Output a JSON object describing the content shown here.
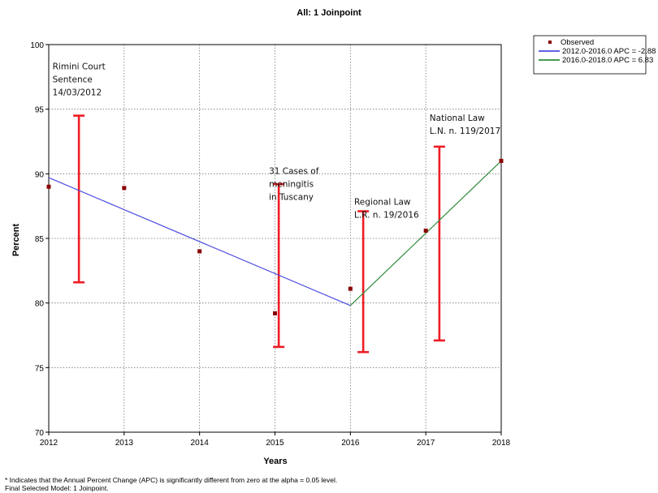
{
  "chart_data": {
    "type": "line",
    "title": "All: 1 Joinpoint",
    "xlabel": "Years",
    "ylabel": "Percent",
    "xlim": [
      2012,
      2018
    ],
    "ylim": [
      70,
      100
    ],
    "x_ticks": [
      "2012",
      "2013",
      "2014",
      "2015",
      "2016",
      "2017",
      "2018"
    ],
    "y_ticks": [
      "70",
      "75",
      "80",
      "85",
      "90",
      "95",
      "100"
    ],
    "grid": true,
    "legend_position": "top-right",
    "observed": {
      "name": "Observed",
      "color": "#8b0000",
      "points": [
        {
          "x": 2012,
          "y": 89.0
        },
        {
          "x": 2013,
          "y": 88.9
        },
        {
          "x": 2014,
          "y": 84.0
        },
        {
          "x": 2015,
          "y": 79.2
        },
        {
          "x": 2016,
          "y": 81.1
        },
        {
          "x": 2017,
          "y": 85.6
        },
        {
          "x": 2018,
          "y": 91.0
        }
      ]
    },
    "segments": [
      {
        "name": "2012.0-2016.0 APC  = -2.88",
        "color": "#4c4ce0",
        "x": [
          2012,
          2016
        ],
        "y": [
          89.7,
          79.8
        ]
      },
      {
        "name": "2016.0-2018.0 APC  = 6.83",
        "color": "#2e8b3a",
        "x": [
          2016,
          2018
        ],
        "y": [
          79.8,
          91.0
        ]
      }
    ],
    "error_bars": [
      {
        "x": 2012.4,
        "low": 81.6,
        "high": 94.5,
        "color": "#ee1c24"
      },
      {
        "x": 2015.05,
        "low": 76.6,
        "high": 89.2,
        "color": "#ee1c24"
      },
      {
        "x": 2016.17,
        "low": 76.2,
        "high": 87.1,
        "color": "#ee1c24"
      },
      {
        "x": 2017.18,
        "low": 77.1,
        "high": 92.1,
        "color": "#ee1c24"
      }
    ],
    "annotations": [
      {
        "x": 2012.05,
        "y": 98.1,
        "lines": [
          "Rimini Court",
          "Sentence",
          "14/03/2012"
        ]
      },
      {
        "x": 2014.92,
        "y": 90.0,
        "lines": [
          "31 Cases of",
          "meningitis",
          "in Tuscany"
        ]
      },
      {
        "x": 2016.05,
        "y": 87.6,
        "lines": [
          "Regional Law",
          "L.R. n. 19/2016"
        ]
      },
      {
        "x": 2017.05,
        "y": 94.1,
        "lines": [
          "National Law",
          "L.N. n. 119/2017"
        ]
      }
    ]
  },
  "footnotes": {
    "line1": "* Indicates that the Annual Percent Change (APC) is significantly different from zero at the alpha = 0.05 level.",
    "line2": "Final Selected Model: 1 Joinpoint."
  }
}
